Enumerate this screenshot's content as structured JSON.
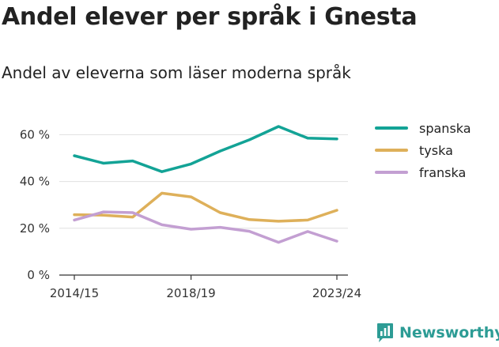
{
  "title": "Andel elever per språk i Gnesta",
  "subtitle": "Andel av eleverna som läser moderna språk",
  "brand": {
    "name": "Newsworthy",
    "icon": "newsworthy-logo-icon"
  },
  "colors": {
    "spanska": "#13a396",
    "tyska": "#deb05a",
    "franska": "#c39fd2",
    "brand": "#2d9c95"
  },
  "chart_data": {
    "type": "line",
    "x": [
      "2014/15",
      "2015/16",
      "2016/17",
      "2017/18",
      "2018/19",
      "2019/20",
      "2020/21",
      "2021/22",
      "2022/23",
      "2023/24"
    ],
    "x_tick_labels": [
      "2014/15",
      "2018/19",
      "2023/24"
    ],
    "y_ticks": [
      0,
      20,
      40,
      60
    ],
    "y_tick_labels": [
      "0 %",
      "20 %",
      "40 %",
      "60 %"
    ],
    "ylim": [
      0,
      65
    ],
    "grid": true,
    "legend": "right",
    "series": [
      {
        "name": "spanska",
        "values": [
          51,
          47.8,
          48.8,
          44.2,
          47.5,
          53,
          57.8,
          63.5,
          58.5,
          58.2
        ]
      },
      {
        "name": "tyska",
        "values": [
          25.8,
          25.6,
          24.8,
          35,
          33.4,
          26.7,
          23.7,
          23,
          23.5,
          27.7
        ]
      },
      {
        "name": "franska",
        "values": [
          23.5,
          27,
          26.7,
          21.5,
          19.6,
          20.4,
          18.7,
          14,
          18.6,
          14.5
        ]
      }
    ]
  }
}
